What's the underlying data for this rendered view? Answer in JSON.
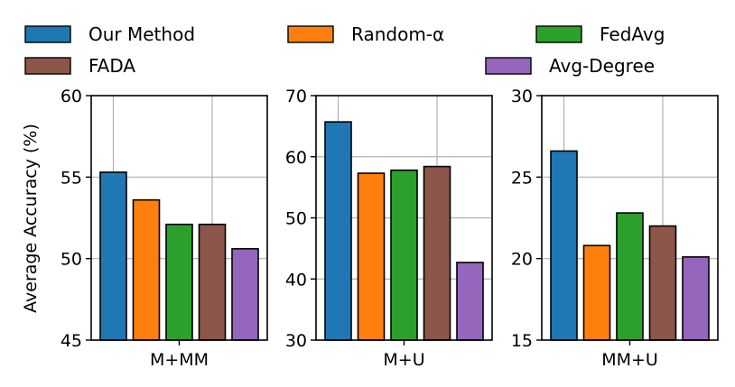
{
  "chart_data": {
    "type": "bar",
    "ylabel": "Average Accuracy (%)",
    "legend": {
      "placement": "top",
      "entries": [
        {
          "label": "Our Method",
          "color": "#1f77b4"
        },
        {
          "label": "Random-α",
          "color": "#ff7f0e"
        },
        {
          "label": "FedAvg",
          "color": "#2ca02c"
        },
        {
          "label": "FADA",
          "color": "#8c564b"
        },
        {
          "label": "Avg-Degree",
          "color": "#9467bd"
        }
      ]
    },
    "grid": true,
    "panels": [
      {
        "xlabel": "M+MM",
        "ylim": [
          45,
          60
        ],
        "yticks": [
          45,
          50,
          55,
          60
        ],
        "values": [
          55.3,
          53.6,
          52.1,
          52.1,
          50.6
        ]
      },
      {
        "xlabel": "M+U",
        "ylim": [
          30,
          70
        ],
        "yticks": [
          30,
          40,
          50,
          60,
          70
        ],
        "values": [
          65.7,
          57.3,
          57.8,
          58.4,
          42.7
        ]
      },
      {
        "xlabel": "MM+U",
        "ylim": [
          15,
          30
        ],
        "yticks": [
          15,
          20,
          25,
          30
        ],
        "values": [
          26.6,
          20.8,
          22.8,
          22.0,
          20.1
        ]
      }
    ]
  }
}
